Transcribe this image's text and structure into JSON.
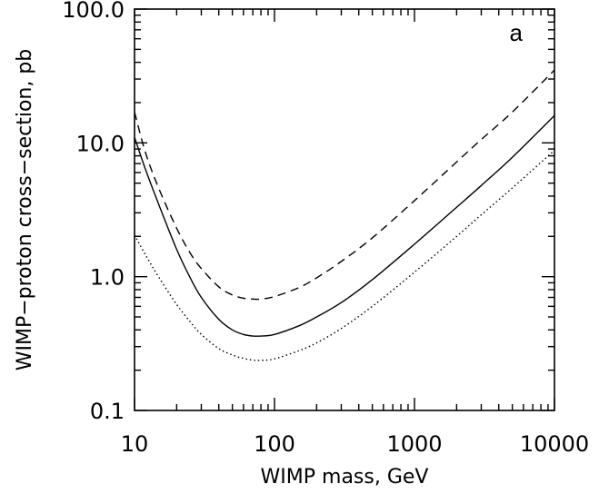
{
  "chart_data": {
    "type": "line",
    "xlabel": "WIMP mass, GeV",
    "ylabel": "WIMP−proton cross−section, pb",
    "xscale": "log",
    "yscale": "log",
    "xlim": [
      10,
      10000
    ],
    "ylim": [
      0.1,
      100
    ],
    "x_ticks": [
      {
        "value": 10,
        "label": "10"
      },
      {
        "value": 100,
        "label": "100"
      },
      {
        "value": 1000,
        "label": "1000"
      },
      {
        "value": 10000,
        "label": "10000"
      }
    ],
    "y_ticks": [
      {
        "value": 0.1,
        "label": "0.1"
      },
      {
        "value": 1,
        "label": "1.0"
      },
      {
        "value": 10,
        "label": "10.0"
      },
      {
        "value": 100,
        "label": "100.0"
      }
    ],
    "annotation": "a",
    "series": [
      {
        "style": "solid",
        "x": [
          10,
          12,
          15,
          20,
          25,
          30,
          40,
          50,
          60,
          70,
          80,
          100,
          150,
          200,
          300,
          500,
          1000,
          2000,
          3000,
          5000,
          10000
        ],
        "y": [
          11,
          6.3,
          3.4,
          1.6,
          0.98,
          0.7,
          0.48,
          0.4,
          0.37,
          0.36,
          0.36,
          0.37,
          0.43,
          0.5,
          0.64,
          0.95,
          1.75,
          3.3,
          4.8,
          7.8,
          16
        ]
      },
      {
        "style": "dashed",
        "x": [
          10,
          12,
          15,
          20,
          25,
          30,
          40,
          50,
          60,
          70,
          80,
          100,
          150,
          200,
          300,
          500,
          1000,
          2000,
          3000,
          5000,
          10000
        ],
        "y": [
          17,
          8.4,
          4.5,
          2.3,
          1.5,
          1.15,
          0.84,
          0.73,
          0.69,
          0.68,
          0.68,
          0.71,
          0.83,
          0.98,
          1.3,
          1.95,
          3.7,
          7.2,
          10.6,
          17,
          35
        ]
      },
      {
        "style": "dotted",
        "x": [
          10,
          12,
          15,
          20,
          25,
          30,
          40,
          50,
          60,
          70,
          80,
          100,
          150,
          200,
          300,
          500,
          1000,
          2000,
          3000,
          5000,
          10000
        ],
        "y": [
          2.05,
          1.45,
          0.98,
          0.62,
          0.46,
          0.37,
          0.29,
          0.26,
          0.245,
          0.238,
          0.237,
          0.243,
          0.28,
          0.32,
          0.41,
          0.6,
          1.08,
          2.0,
          2.9,
          4.6,
          8.8
        ]
      }
    ]
  }
}
